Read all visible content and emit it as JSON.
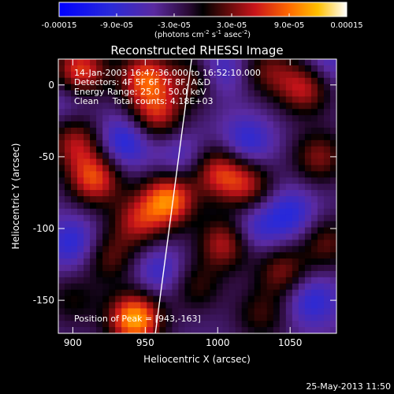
{
  "chart_data": {
    "type": "heatmap",
    "title": "Reconstructed RHESSI Image",
    "xlabel": "Heliocentric X (arcsec)",
    "ylabel": "Heliocentric Y (arcsec)",
    "xlim": [
      890,
      1082
    ],
    "ylim": [
      -173,
      18
    ],
    "xticks": [
      900,
      950,
      1000,
      1050
    ],
    "yticks": [
      0,
      -50,
      -100,
      -150
    ],
    "colorbar": {
      "min": -0.00015,
      "max": 0.00015,
      "ticks": [
        {
          "label": "-0.00015",
          "value": -0.00015
        },
        {
          "label": "-9.0e-05",
          "value": -9e-05
        },
        {
          "label": "-3.0e-05",
          "value": -3e-05
        },
        {
          "label": "3.0e-05",
          "value": 3e-05
        },
        {
          "label": "9.0e-05",
          "value": 9e-05
        },
        {
          "label": "0.00015",
          "value": 0.00015
        }
      ],
      "units_prefix": "(photons cm",
      "units_sup1": "-2",
      "units_mid": " s",
      "units_sup2": "-1",
      "units_mid2": " asec",
      "units_sup3": "-2",
      "units_suffix": ")"
    },
    "info_lines": [
      "14-Jan-2003 16:47:36.000 to 16:52:10.000",
      "Detectors: 4F 5F 6F 7F 8F, A&D",
      "Energy Range: 25.0 - 50.0 keV",
      "Clean     Total counts: 4.18E+03"
    ],
    "position_label": "Position of Peak = [943,-163]",
    "peak": [
      943,
      -163
    ],
    "limb_line": {
      "x1": 957,
      "y1": -173,
      "x2": 982,
      "y2": 18
    },
    "sources": [
      {
        "x": 966,
        "y": -80,
        "value": 0.00013
      },
      {
        "x": 943,
        "y": -163,
        "value": 0.00015
      },
      {
        "x": 905,
        "y": 10,
        "value": 0.00011
      },
      {
        "x": 950,
        "y": 5,
        "value": 0.00011
      },
      {
        "x": 958,
        "y": -20,
        "value": 9e-05
      },
      {
        "x": 985,
        "y": 5,
        "value": 7e-05
      },
      {
        "x": 915,
        "y": -65,
        "value": 0.00011
      },
      {
        "x": 902,
        "y": -40,
        "value": 8e-05
      },
      {
        "x": 945,
        "y": -95,
        "value": 8e-05
      },
      {
        "x": 1000,
        "y": -60,
        "value": 9e-05
      },
      {
        "x": 1020,
        "y": -70,
        "value": 8e-05
      },
      {
        "x": 1005,
        "y": -110,
        "value": 9e-05
      },
      {
        "x": 1060,
        "y": -2,
        "value": 9e-05
      },
      {
        "x": 1070,
        "y": -50,
        "value": 7e-05
      },
      {
        "x": 1045,
        "y": -130,
        "value": 7e-05
      },
      {
        "x": 1075,
        "y": -110,
        "value": 6e-05
      },
      {
        "x": 925,
        "y": -120,
        "value": 6e-05
      },
      {
        "x": 985,
        "y": -140,
        "value": 5e-05
      },
      {
        "x": 1035,
        "y": 10,
        "value": 6e-05
      },
      {
        "x": 1030,
        "y": -160,
        "value": 5e-05
      },
      {
        "x": 900,
        "y": -150,
        "value": 4e-05
      },
      {
        "x": 1020,
        "y": -40,
        "value": -6e-05
      },
      {
        "x": 935,
        "y": -40,
        "value": -7e-05
      },
      {
        "x": 900,
        "y": -110,
        "value": -6e-05
      },
      {
        "x": 1000,
        "y": 10,
        "value": -6e-05
      },
      {
        "x": 1050,
        "y": -90,
        "value": -6e-05
      },
      {
        "x": 960,
        "y": -130,
        "value": -5e-05
      },
      {
        "x": 1065,
        "y": -150,
        "value": -6e-05
      },
      {
        "x": 1025,
        "y": -100,
        "value": -5e-05
      },
      {
        "x": 975,
        "y": -50,
        "value": -4e-05
      },
      {
        "x": 1075,
        "y": 15,
        "value": -4e-05
      },
      {
        "x": 895,
        "y": -10,
        "value": -3e-05
      }
    ]
  },
  "timestamp": "25-May-2013 11:50"
}
